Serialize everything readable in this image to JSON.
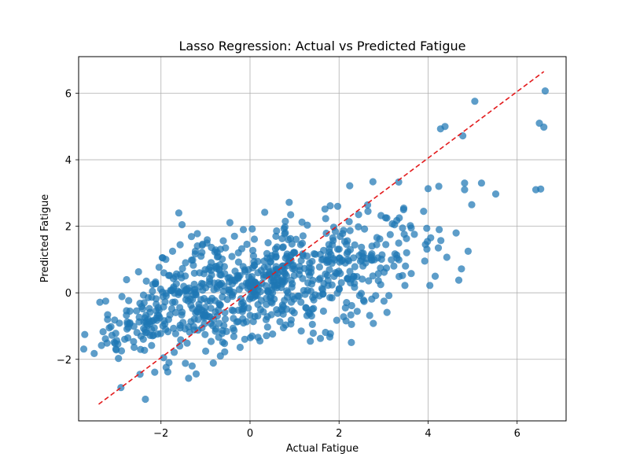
{
  "chart_data": {
    "type": "scatter",
    "title": "Lasso Regression: Actual vs Predicted Fatigue",
    "xlabel": "Actual Fatigue",
    "ylabel": "Predicted Fatigue",
    "xlim": [
      -3.85,
      7.1
    ],
    "ylim": [
      -3.85,
      7.1
    ],
    "xticks": [
      -2,
      0,
      2,
      4,
      6
    ],
    "yticks": [
      -2,
      0,
      2,
      4,
      6
    ],
    "xtick_labels": [
      "−2",
      "0",
      "2",
      "4",
      "6"
    ],
    "ytick_labels": [
      "−2",
      "0",
      "2",
      "4",
      "6"
    ],
    "grid": true,
    "colors": {
      "points": "#1f77b4",
      "reference": "#e31a1c",
      "grid": "#b0b0b0"
    },
    "reference_line": {
      "style": "dashed",
      "from": [
        -3.4,
        -3.35
      ],
      "to": [
        6.6,
        6.65
      ]
    },
    "highlighted_points": [
      [
        6.63,
        6.07
      ],
      [
        5.05,
        5.76
      ],
      [
        4.38,
        5.0
      ],
      [
        4.28,
        4.93
      ],
      [
        4.78,
        4.72
      ],
      [
        6.5,
        5.1
      ],
      [
        6.6,
        4.98
      ],
      [
        4.82,
        3.3
      ],
      [
        4.82,
        3.1
      ],
      [
        5.2,
        3.3
      ],
      [
        5.52,
        2.97
      ],
      [
        4.98,
        2.65
      ],
      [
        6.42,
        3.1
      ],
      [
        6.53,
        3.12
      ],
      [
        4.0,
        3.13
      ],
      [
        4.24,
        3.2
      ],
      [
        2.24,
        3.22
      ],
      [
        2.76,
        3.34
      ],
      [
        3.34,
        3.33
      ],
      [
        0.88,
        2.72
      ],
      [
        0.33,
        2.42
      ],
      [
        3.45,
        2.5
      ],
      [
        3.9,
        2.45
      ],
      [
        4.63,
        1.8
      ],
      [
        4.9,
        1.25
      ],
      [
        4.42,
        1.07
      ],
      [
        4.75,
        0.72
      ],
      [
        4.16,
        0.5
      ],
      [
        4.69,
        0.38
      ],
      [
        4.04,
        0.22
      ],
      [
        3.62,
        0.58
      ],
      [
        3.48,
        0.22
      ],
      [
        2.28,
        -0.95
      ],
      [
        2.77,
        -0.92
      ],
      [
        1.65,
        -0.55
      ],
      [
        -1.21,
        -2.44
      ],
      [
        -2.35,
        -3.2
      ],
      [
        -2.47,
        -2.45
      ],
      [
        -1.38,
        -2.57
      ],
      [
        -2.9,
        -2.85
      ],
      [
        -1.3,
        -2.2
      ],
      [
        -1.82,
        -2.1
      ],
      [
        -3.3,
        -1.17
      ],
      [
        -3.2,
        -0.8
      ],
      [
        -1.96,
        1.05
      ],
      [
        -1.74,
        1.25
      ],
      [
        -2.33,
        0.35
      ],
      [
        -1.6,
        2.4
      ],
      [
        0.86,
        1.6
      ],
      [
        1.7,
        2.23
      ],
      [
        1.97,
        2.6
      ],
      [
        2.65,
        2.45
      ],
      [
        3.62,
        1.95
      ],
      [
        3.97,
        1.94
      ],
      [
        4.25,
        1.9
      ],
      [
        3.94,
        1.45
      ],
      [
        4.23,
        1.35
      ],
      [
        3.05,
        1.45
      ],
      [
        2.87,
        1.05
      ],
      [
        2.48,
        0.95
      ],
      [
        2.2,
        0.45
      ],
      [
        1.55,
        0.4
      ],
      [
        1.1,
        -0.1
      ],
      [
        0.45,
        -0.15
      ],
      [
        0.75,
        -1.05
      ],
      [
        1.15,
        -1.15
      ],
      [
        1.4,
        -0.95
      ],
      [
        2.1,
        -0.72
      ],
      [
        2.55,
        -0.22
      ],
      [
        3.01,
        -0.25
      ],
      [
        -0.35,
        1.7
      ],
      [
        -0.15,
        1.9
      ],
      [
        0.05,
        1.92
      ],
      [
        -0.55,
        1.35
      ],
      [
        -1.1,
        1.1
      ],
      [
        0.38,
        1.18
      ],
      [
        1.78,
        1.32
      ],
      [
        2.08,
        1.78
      ],
      [
        2.44,
        2.35
      ],
      [
        2.85,
        1.66
      ]
    ],
    "cloud_clusters": [
      {
        "center": [
          -2.6,
          -0.9
        ],
        "spread": [
          0.45,
          0.55
        ],
        "count": 70,
        "seed": 11
      },
      {
        "center": [
          -1.5,
          -0.25
        ],
        "spread": [
          0.6,
          0.75
        ],
        "count": 160,
        "seed": 23
      },
      {
        "center": [
          -0.3,
          0.1
        ],
        "spread": [
          0.7,
          0.85
        ],
        "count": 200,
        "seed": 37
      },
      {
        "center": [
          0.9,
          0.4
        ],
        "spread": [
          0.7,
          0.8
        ],
        "count": 170,
        "seed": 41
      },
      {
        "center": [
          2.2,
          0.75
        ],
        "spread": [
          0.65,
          0.8
        ],
        "count": 110,
        "seed": 53
      },
      {
        "center": [
          3.3,
          1.3
        ],
        "spread": [
          0.45,
          0.6
        ],
        "count": 35,
        "seed": 67
      }
    ]
  }
}
